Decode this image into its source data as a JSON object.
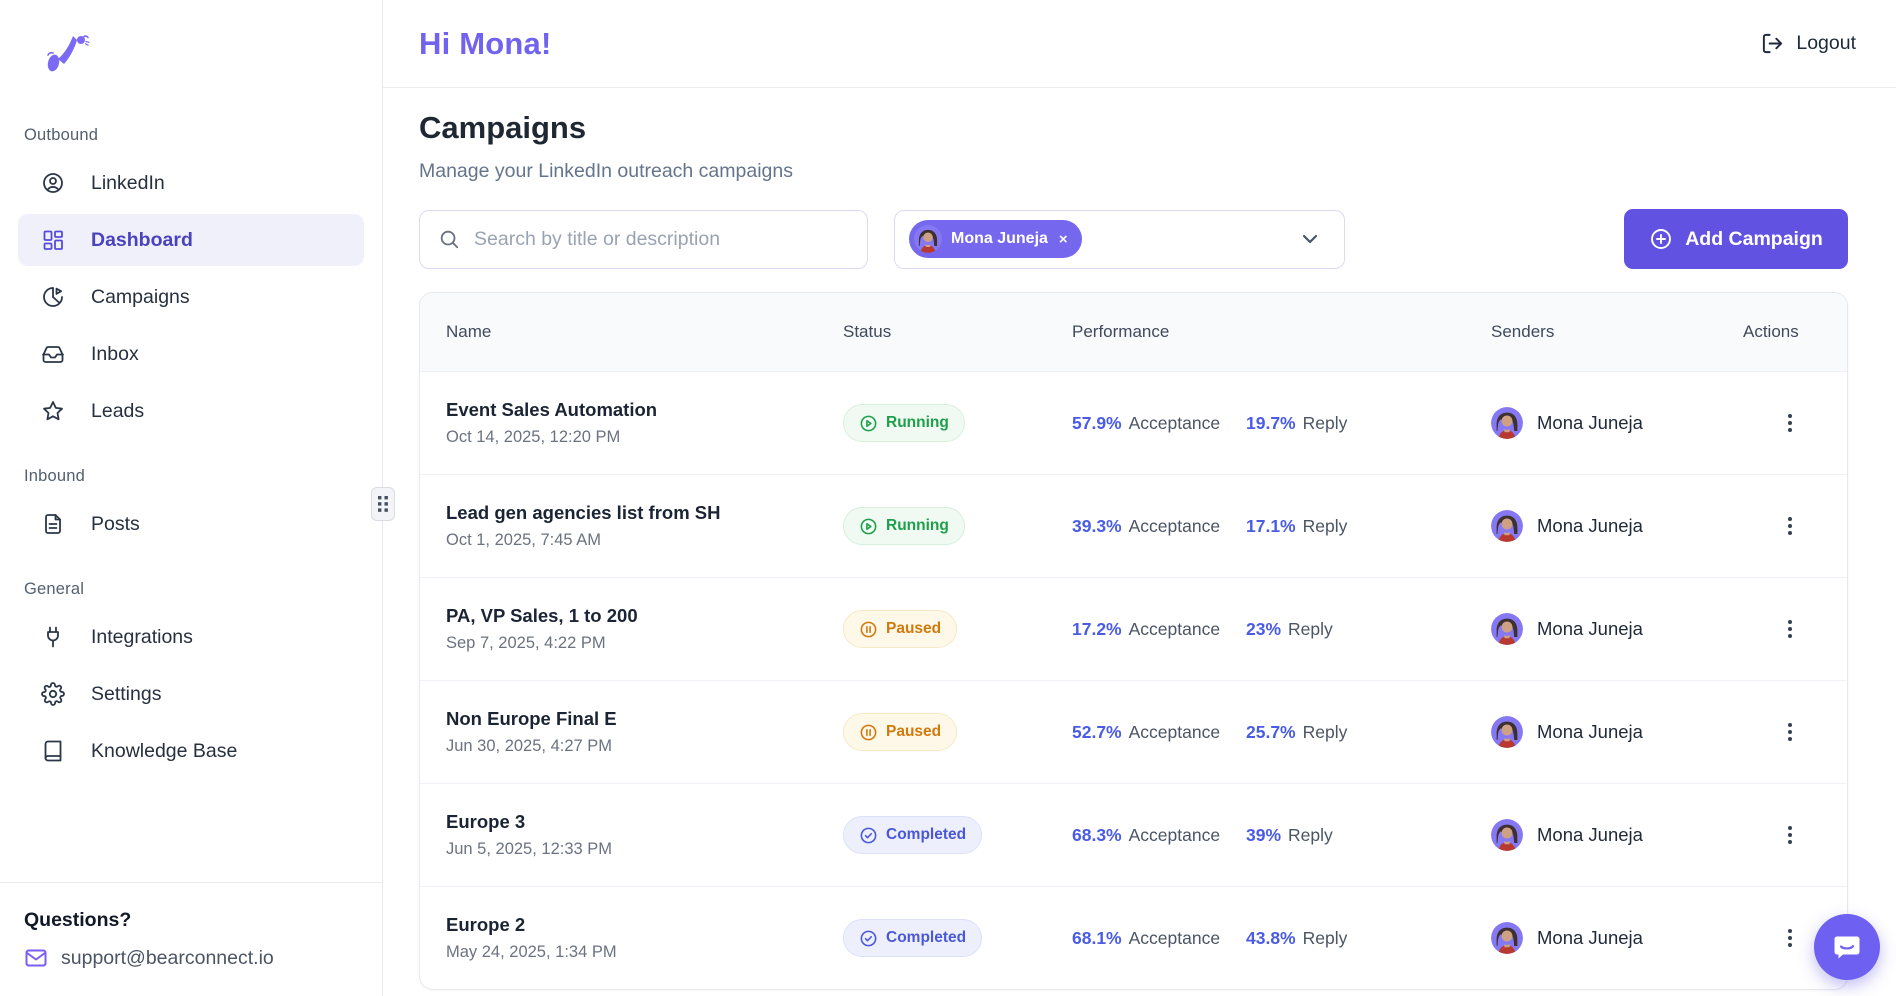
{
  "brand": {
    "logo_name": "bearconnect-logo",
    "support_label": "Questions?",
    "support_email": "support@bearconnect.io"
  },
  "sidebar": {
    "sections": [
      {
        "label": "Outbound",
        "items": [
          {
            "label": "LinkedIn",
            "icon": "user-circle-icon",
            "active": false
          },
          {
            "label": "Dashboard",
            "icon": "dashboard-grid-icon",
            "active": true
          },
          {
            "label": "Campaigns",
            "icon": "pie-chart-icon",
            "active": false
          },
          {
            "label": "Inbox",
            "icon": "inbox-icon",
            "active": false
          },
          {
            "label": "Leads",
            "icon": "star-icon",
            "active": false
          }
        ]
      },
      {
        "label": "Inbound",
        "items": [
          {
            "label": "Posts",
            "icon": "file-text-icon",
            "active": false
          }
        ]
      },
      {
        "label": "General",
        "items": [
          {
            "label": "Integrations",
            "icon": "plug-icon",
            "active": false
          },
          {
            "label": "Settings",
            "icon": "gear-icon",
            "active": false
          },
          {
            "label": "Knowledge Base",
            "icon": "book-icon",
            "active": false
          }
        ]
      }
    ]
  },
  "header": {
    "greeting": "Hi Mona!",
    "logout_label": "Logout"
  },
  "page": {
    "title": "Campaigns",
    "subtitle": "Manage your LinkedIn outreach campaigns"
  },
  "controls": {
    "search_placeholder": "Search by title or description",
    "search_value": "",
    "sender_filter": {
      "selected": "Mona Juneja",
      "remove_glyph": "×"
    },
    "add_campaign_label": "Add Campaign"
  },
  "table": {
    "columns": [
      "Name",
      "Status",
      "Performance",
      "Senders",
      "Actions"
    ],
    "acceptance_label": "Acceptance",
    "reply_label": "Reply",
    "rows": [
      {
        "name": "Event Sales Automation",
        "date": "Oct 14, 2025, 12:20 PM",
        "status": "Running",
        "acceptance": "57.9%",
        "reply": "19.7%",
        "sender": "Mona Juneja"
      },
      {
        "name": "Lead gen agencies list from SH",
        "date": "Oct 1, 2025, 7:45 AM",
        "status": "Running",
        "acceptance": "39.3%",
        "reply": "17.1%",
        "sender": "Mona Juneja"
      },
      {
        "name": "PA, VP Sales, 1 to 200",
        "date": "Sep 7, 2025, 4:22 PM",
        "status": "Paused",
        "acceptance": "17.2%",
        "reply": "23%",
        "sender": "Mona Juneja"
      },
      {
        "name": "Non Europe Final E",
        "date": "Jun 30, 2025, 4:27 PM",
        "status": "Paused",
        "acceptance": "52.7%",
        "reply": "25.7%",
        "sender": "Mona Juneja"
      },
      {
        "name": "Europe 3",
        "date": "Jun 5, 2025, 12:33 PM",
        "status": "Completed",
        "acceptance": "68.3%",
        "reply": "39%",
        "sender": "Mona Juneja"
      },
      {
        "name": "Europe 2",
        "date": "May 24, 2025, 1:34 PM",
        "status": "Completed",
        "acceptance": "68.1%",
        "reply": "43.8%",
        "sender": "Mona Juneja"
      }
    ]
  },
  "colors": {
    "accent_button": "#6152e2",
    "accent_heading": "#7163f0",
    "chip_purple": "#7668ee",
    "metric_blue": "#4a5ce4",
    "status_running": "#1ea04a",
    "status_paused": "#d2790e",
    "status_completed": "#4a57d8",
    "chat_fab": "#6e61f2"
  }
}
